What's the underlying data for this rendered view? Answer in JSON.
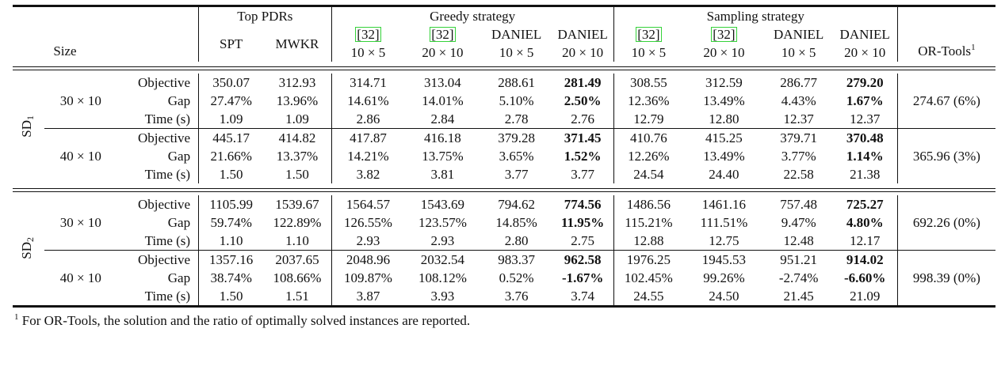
{
  "headers": {
    "size": "Size",
    "top_pdrs": "Top PDRs",
    "greedy": "Greedy strategy",
    "sampling": "Sampling strategy",
    "ortools": "OR-Tools",
    "ortools_sup": "1",
    "pdr_cols": [
      "SPT",
      "MWKR"
    ],
    "greedy_cols": [
      {
        "name": "[32]",
        "ref": true,
        "size": "10 × 5"
      },
      {
        "name": "[32]",
        "ref": true,
        "size": "20 × 10"
      },
      {
        "name": "DANIEL",
        "ref": false,
        "size": "10 × 5"
      },
      {
        "name": "DANIEL",
        "ref": false,
        "size": "20 × 10"
      }
    ],
    "sampling_cols": [
      {
        "name": "[32]",
        "ref": true,
        "size": "10 × 5"
      },
      {
        "name": "[32]",
        "ref": true,
        "size": "20 × 10"
      },
      {
        "name": "DANIEL",
        "ref": false,
        "size": "10 × 5"
      },
      {
        "name": "DANIEL",
        "ref": false,
        "size": "20 × 10"
      }
    ]
  },
  "metrics": [
    "Objective",
    "Gap",
    "Time (s)"
  ],
  "groups": [
    {
      "dataset": "SD",
      "dataset_sub": "1",
      "sizes": [
        {
          "size": "30 × 10",
          "ortools": "274.67 (6%)",
          "rows": [
            [
              "350.07",
              "312.93",
              "314.71",
              "313.04",
              "288.61",
              "281.49",
              "308.55",
              "312.59",
              "286.77",
              "279.20"
            ],
            [
              "27.47%",
              "13.96%",
              "14.61%",
              "14.01%",
              "5.10%",
              "2.50%",
              "12.36%",
              "13.49%",
              "4.43%",
              "1.67%"
            ],
            [
              "1.09",
              "1.09",
              "2.86",
              "2.84",
              "2.78",
              "2.76",
              "12.79",
              "12.80",
              "12.37",
              "12.37"
            ]
          ],
          "bold": [
            [
              5,
              9
            ],
            [
              5,
              9
            ],
            []
          ]
        },
        {
          "size": "40 × 10",
          "ortools": "365.96 (3%)",
          "rows": [
            [
              "445.17",
              "414.82",
              "417.87",
              "416.18",
              "379.28",
              "371.45",
              "410.76",
              "415.25",
              "379.71",
              "370.48"
            ],
            [
              "21.66%",
              "13.37%",
              "14.21%",
              "13.75%",
              "3.65%",
              "1.52%",
              "12.26%",
              "13.49%",
              "3.77%",
              "1.14%"
            ],
            [
              "1.50",
              "1.50",
              "3.82",
              "3.81",
              "3.77",
              "3.77",
              "24.54",
              "24.40",
              "22.58",
              "21.38"
            ]
          ],
          "bold": [
            [
              5,
              9
            ],
            [
              5,
              9
            ],
            []
          ]
        }
      ]
    },
    {
      "dataset": "SD",
      "dataset_sub": "2",
      "sizes": [
        {
          "size": "30 × 10",
          "ortools": "692.26 (0%)",
          "rows": [
            [
              "1105.99",
              "1539.67",
              "1564.57",
              "1543.69",
              "794.62",
              "774.56",
              "1486.56",
              "1461.16",
              "757.48",
              "725.27"
            ],
            [
              "59.74%",
              "122.89%",
              "126.55%",
              "123.57%",
              "14.85%",
              "11.95%",
              "115.21%",
              "111.51%",
              "9.47%",
              "4.80%"
            ],
            [
              "1.10",
              "1.10",
              "2.93",
              "2.93",
              "2.80",
              "2.75",
              "12.88",
              "12.75",
              "12.48",
              "12.17"
            ]
          ],
          "bold": [
            [
              5,
              9
            ],
            [
              5,
              9
            ],
            []
          ]
        },
        {
          "size": "40 × 10",
          "ortools": "998.39 (0%)",
          "rows": [
            [
              "1357.16",
              "2037.65",
              "2048.96",
              "2032.54",
              "983.37",
              "962.58",
              "1976.25",
              "1945.53",
              "951.21",
              "914.02"
            ],
            [
              "38.74%",
              "108.66%",
              "109.87%",
              "108.12%",
              "0.52%",
              "-1.67%",
              "102.45%",
              "99.26%",
              "-2.74%",
              "-6.60%"
            ],
            [
              "1.50",
              "1.51",
              "3.87",
              "3.93",
              "3.76",
              "3.74",
              "24.55",
              "24.50",
              "21.45",
              "21.09"
            ]
          ],
          "bold": [
            [
              5,
              9
            ],
            [
              5,
              9
            ],
            []
          ]
        }
      ]
    }
  ],
  "footnote": {
    "mark": "1",
    "text": " For OR-Tools, the solution and the ratio of optimally solved instances are reported."
  }
}
